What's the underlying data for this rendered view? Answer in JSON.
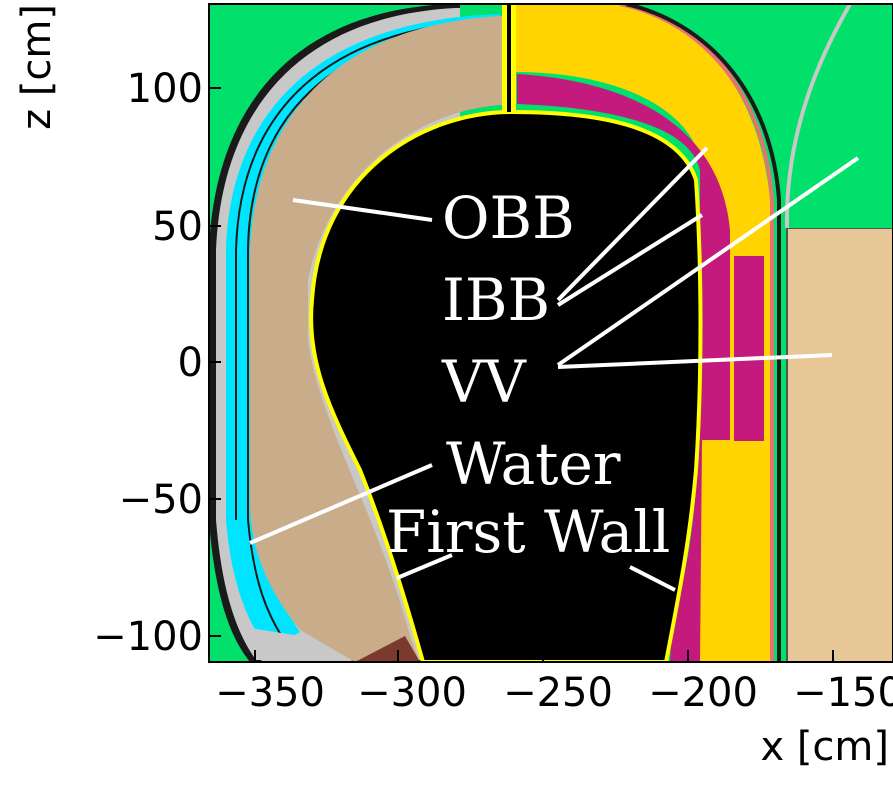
{
  "axes": {
    "x_title": "x [cm]",
    "y_title": "z [cm]",
    "x_ticks": [
      "−350",
      "−300",
      "−250",
      "−200",
      "−150"
    ],
    "y_ticks": [
      "100",
      "50",
      "0",
      "−50",
      "−100"
    ],
    "x_range": [
      -370,
      -135
    ],
    "y_range": [
      -110,
      130
    ]
  },
  "labels": {
    "obb": "OBB",
    "ibb": "IBB",
    "vv": "VV",
    "water": "Water",
    "first_wall": "First Wall"
  },
  "colors": {
    "plasma": "#000000",
    "obb": "#c9ad8a",
    "ibb": "#ffd400",
    "vv": "#c41a7d",
    "water": "#00e5ff",
    "first_wall": "#ffff00",
    "background": "#00e06b",
    "center_stack": "#e8c796",
    "cladding": "#c8c8c8",
    "divertor_tile": "#7a3a2e",
    "annotation_line": "#ffffff"
  }
}
